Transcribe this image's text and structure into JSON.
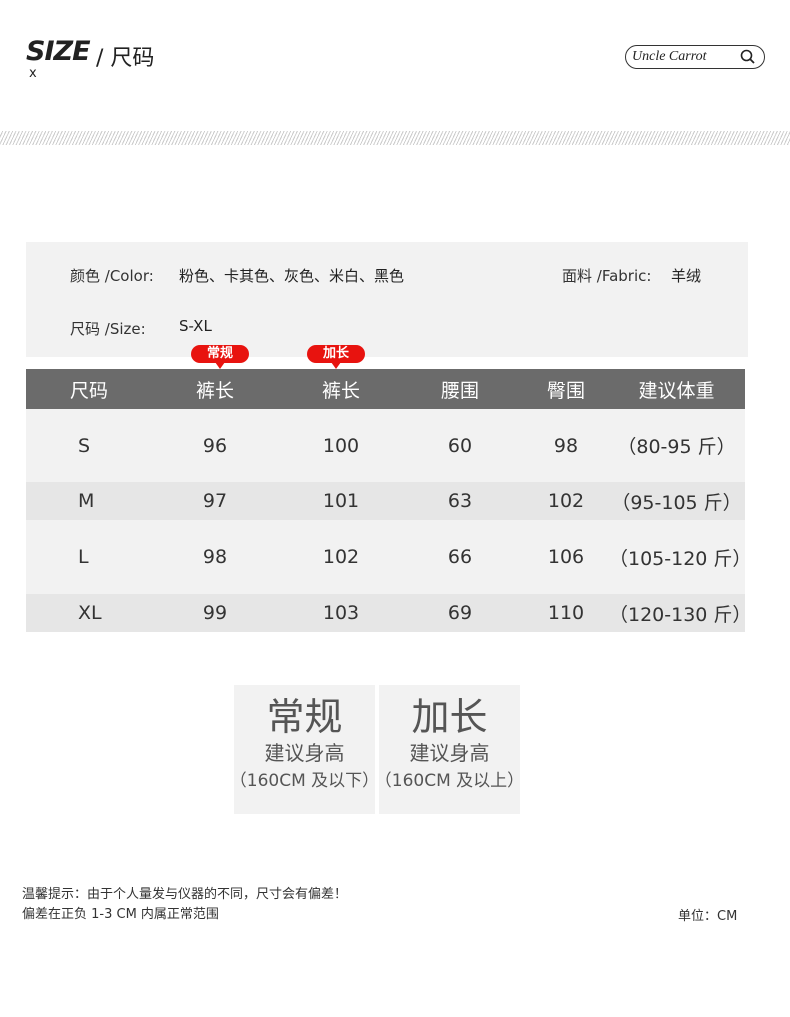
{
  "header": {
    "title": "SIZE",
    "title_cn": "/ 尺码",
    "subtitle": "x",
    "brand": "Uncle Carrot",
    "brand_icon": "search-icon"
  },
  "info": {
    "color_label": "颜色 /Color:",
    "color_value": "粉色、卡其色、灰色、米白、黑色",
    "fabric_label": "面料 /Fabric:",
    "fabric_value": "羊绒",
    "size_label": "尺码 /Size:",
    "size_value": "S-XL"
  },
  "badges": {
    "regular": "常规",
    "long": "加长",
    "color": "#e8130f"
  },
  "table": {
    "headers": [
      "尺码",
      "裤长",
      "裤长",
      "腰围",
      "臀围",
      "建议体重"
    ],
    "rows": [
      [
        "S",
        "96",
        "100",
        "60",
        "98",
        "（80-95 斤）"
      ],
      [
        "M",
        "97",
        "101",
        "63",
        "102",
        "（95-105 斤）"
      ],
      [
        "L",
        "98",
        "102",
        "66",
        "106",
        "（105-120 斤）"
      ],
      [
        "XL",
        "99",
        "103",
        "69",
        "110",
        "（120-130 斤）"
      ]
    ]
  },
  "fit_boxes": [
    {
      "title": "常规",
      "subtitle": "建议身高",
      "range": "（160CM 及以下）"
    },
    {
      "title": "加长",
      "subtitle": "建议身高",
      "range": "（160CM 及以上）"
    }
  ],
  "notes": {
    "line1": "温馨提示：由于个人量发与仪器的不同，尺寸会有偏差！",
    "line2": "偏差在正负 1-3 CM  内属正常范围",
    "unit": "单位：CM"
  }
}
